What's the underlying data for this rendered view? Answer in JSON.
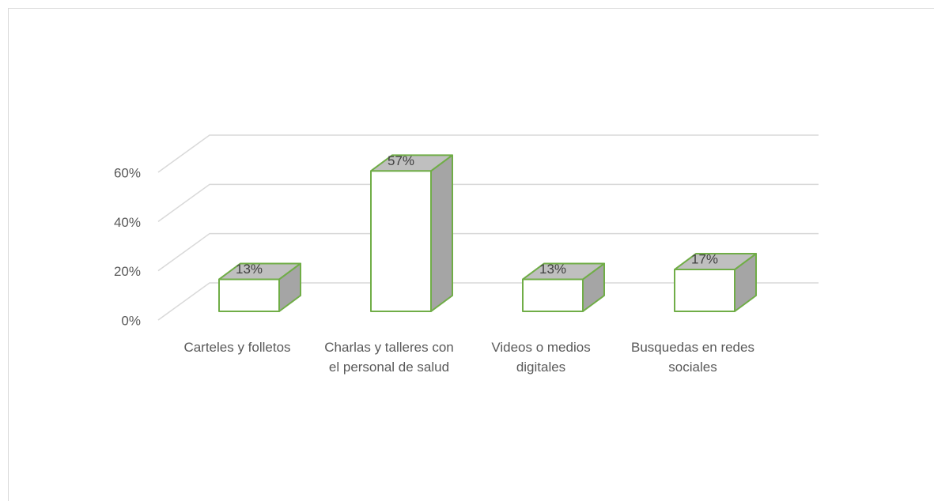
{
  "chart_data": {
    "type": "bar3d",
    "categories": [
      "Carteles y folletos",
      "Charlas y talleres con el personal de salud",
      "Videos o medios digitales",
      "Busquedas en redes sociales"
    ],
    "values": [
      13,
      57,
      13,
      17
    ],
    "value_labels": [
      "13%",
      "57%",
      "13%",
      "17%"
    ],
    "color": "#70ad47",
    "ylim": [
      0,
      60
    ],
    "yticks": [
      {
        "value": 0,
        "label": "0%"
      },
      {
        "value": 20,
        "label": "20%"
      },
      {
        "value": 40,
        "label": "40%"
      },
      {
        "value": 60,
        "label": "60%"
      }
    ],
    "grid": true
  }
}
